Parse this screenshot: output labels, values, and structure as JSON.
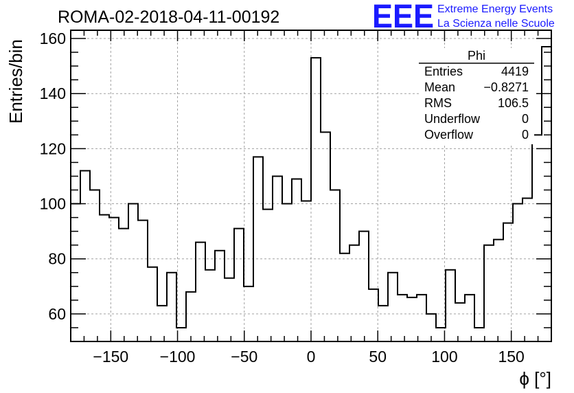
{
  "header": {
    "title": "ROMA-02-2018-04-11-00192",
    "logo_text": "EEE",
    "logo_line1": "Extreme Energy Events",
    "logo_line2": "La Scienza nelle Scuole"
  },
  "stats": {
    "title": "Phi",
    "rows": [
      {
        "label": "Entries",
        "value": "4419"
      },
      {
        "label": "Mean",
        "value": "−0.8271"
      },
      {
        "label": "RMS",
        "value": "106.5"
      },
      {
        "label": "Underflow",
        "value": "0"
      },
      {
        "label": "Overflow",
        "value": "0"
      }
    ]
  },
  "colors": {
    "line": "#000000",
    "grid": "#a0a0a0",
    "brand": "#1a1aff"
  },
  "chart_data": {
    "type": "histogram",
    "xlabel": "ϕ [°]",
    "ylabel": "Entries/bin",
    "xlim": [
      -180,
      180
    ],
    "ylim": [
      50,
      163
    ],
    "grid": true,
    "x_ticks": [
      -150,
      -100,
      -50,
      0,
      50,
      100,
      150
    ],
    "x_tick_labels": [
      "−150",
      "−100",
      "−50",
      "0",
      "50",
      "100",
      "150"
    ],
    "y_ticks": [
      60,
      80,
      100,
      120,
      140,
      160
    ],
    "y_tick_labels": [
      "60",
      "80",
      "100",
      "120",
      "140",
      "160"
    ],
    "bin_edges_start": -180,
    "bin_width": 7.2,
    "values": [
      100,
      112,
      105,
      96,
      95,
      91,
      100,
      94,
      77,
      63,
      75,
      55,
      68,
      86,
      76,
      83,
      73,
      91,
      70,
      117,
      98,
      110,
      100,
      109,
      101,
      153,
      126,
      105,
      82,
      85,
      90,
      69,
      63,
      75,
      67,
      66,
      67,
      60,
      55,
      76,
      64,
      67,
      55,
      85,
      87,
      93,
      100,
      102,
      125,
      157
    ]
  }
}
